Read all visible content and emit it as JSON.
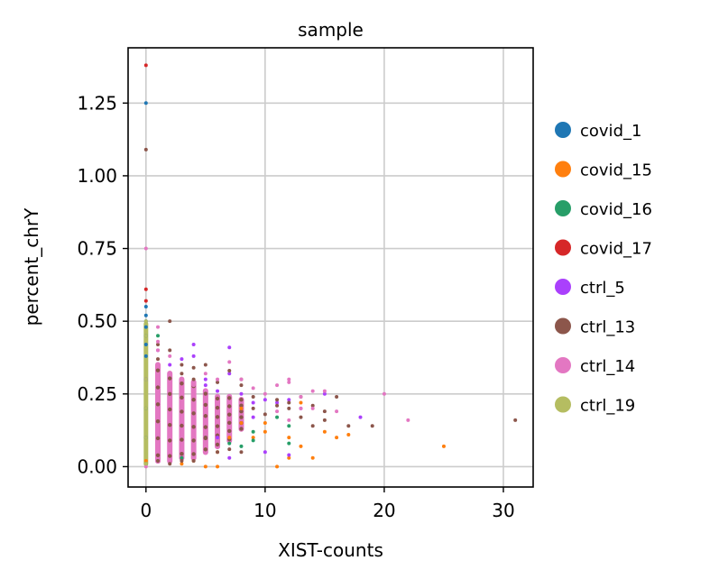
{
  "chart_data": {
    "type": "scatter",
    "title": "sample",
    "xlabel": "XIST-counts",
    "ylabel": "percent_chrY",
    "xlim": [
      -1.5,
      32.5
    ],
    "ylim": [
      -0.07,
      1.44
    ],
    "xticks": [
      0,
      10,
      20,
      30
    ],
    "xtick_labels": [
      "0",
      "10",
      "20",
      "30"
    ],
    "yticks": [
      0.0,
      0.25,
      0.5,
      0.75,
      1.0,
      1.25
    ],
    "ytick_labels": [
      "0.00",
      "0.25",
      "0.50",
      "0.75",
      "1.00",
      "1.25"
    ],
    "grid": true,
    "legend_position": "right-outside",
    "series": [
      {
        "name": "covid_1",
        "color": "#1f77b4",
        "points": [
          [
            0,
            1.25
          ],
          [
            0,
            0.55
          ],
          [
            0,
            0.52
          ],
          [
            0,
            0.5
          ],
          [
            0,
            0.48
          ],
          [
            0,
            0.45
          ],
          [
            0,
            0.42
          ],
          [
            0,
            0.38
          ],
          [
            0,
            0.3
          ],
          [
            0,
            0.2
          ],
          [
            0,
            0.1
          ]
        ]
      },
      {
        "name": "covid_15",
        "color": "#ff7f0e",
        "points": [
          [
            0,
            0.02
          ],
          [
            3,
            0.01
          ],
          [
            5,
            0.0
          ],
          [
            6,
            0.0
          ],
          [
            6,
            0.05
          ],
          [
            7,
            0.1
          ],
          [
            8,
            0.15
          ],
          [
            8,
            0.2
          ],
          [
            9,
            0.1
          ],
          [
            10,
            0.15
          ],
          [
            10,
            0.12
          ],
          [
            11,
            0.0
          ],
          [
            12,
            0.1
          ],
          [
            12,
            0.03
          ],
          [
            13,
            0.22
          ],
          [
            14,
            0.03
          ],
          [
            15,
            0.12
          ],
          [
            16,
            0.1
          ],
          [
            17,
            0.11
          ],
          [
            25,
            0.07
          ],
          [
            13,
            0.07
          ],
          [
            4,
            0.02
          ]
        ]
      },
      {
        "name": "covid_16",
        "color": "#279e68",
        "points": [
          [
            0,
            0.01
          ],
          [
            1,
            0.45
          ],
          [
            3,
            0.03
          ],
          [
            5,
            0.1
          ],
          [
            7,
            0.08
          ],
          [
            8,
            0.07
          ],
          [
            9,
            0.09
          ],
          [
            9,
            0.12
          ],
          [
            12,
            0.08
          ],
          [
            12,
            0.14
          ],
          [
            11,
            0.17
          ]
        ]
      },
      {
        "name": "covid_17",
        "color": "#d62728",
        "points": [
          [
            0,
            1.38
          ],
          [
            0,
            0.61
          ],
          [
            0,
            0.57
          ]
        ]
      },
      {
        "name": "ctrl_5",
        "color": "#aa40fc",
        "points": [
          [
            0,
            0.3
          ],
          [
            1,
            0.4
          ],
          [
            2,
            0.35
          ],
          [
            3,
            0.37
          ],
          [
            4,
            0.42
          ],
          [
            4,
            0.38
          ],
          [
            5,
            0.3
          ],
          [
            5,
            0.28
          ],
          [
            6,
            0.26
          ],
          [
            6,
            0.1
          ],
          [
            7,
            0.41
          ],
          [
            7,
            0.32
          ],
          [
            7,
            0.03
          ],
          [
            8,
            0.25
          ],
          [
            9,
            0.22
          ],
          [
            10,
            0.23
          ],
          [
            10,
            0.05
          ],
          [
            11,
            0.22
          ],
          [
            12,
            0.23
          ],
          [
            12,
            0.04
          ],
          [
            13,
            0.2
          ],
          [
            15,
            0.25
          ],
          [
            18,
            0.17
          ],
          [
            9,
            0.17
          ]
        ]
      },
      {
        "name": "ctrl_13",
        "color": "#8c564b",
        "points": [
          [
            0,
            1.09
          ],
          [
            1,
            0.42
          ],
          [
            1,
            0.37
          ],
          [
            1,
            0.02
          ],
          [
            2,
            0.5
          ],
          [
            2,
            0.4
          ],
          [
            2,
            0.01
          ],
          [
            3,
            0.32
          ],
          [
            3,
            0.35
          ],
          [
            3,
            0.02
          ],
          [
            4,
            0.34
          ],
          [
            4,
            0.3
          ],
          [
            4,
            0.02
          ],
          [
            5,
            0.35
          ],
          [
            5,
            0.1
          ],
          [
            6,
            0.29
          ],
          [
            6,
            0.05
          ],
          [
            7,
            0.33
          ],
          [
            7,
            0.06
          ],
          [
            8,
            0.3
          ],
          [
            8,
            0.28
          ],
          [
            8,
            0.05
          ],
          [
            9,
            0.24
          ],
          [
            9,
            0.2
          ],
          [
            10,
            0.18
          ],
          [
            11,
            0.21
          ],
          [
            11,
            0.23
          ],
          [
            12,
            0.22
          ],
          [
            12,
            0.2
          ],
          [
            13,
            0.24
          ],
          [
            13,
            0.17
          ],
          [
            14,
            0.21
          ],
          [
            14,
            0.14
          ],
          [
            15,
            0.19
          ],
          [
            15,
            0.16
          ],
          [
            16,
            0.24
          ],
          [
            17,
            0.14
          ],
          [
            19,
            0.14
          ],
          [
            31,
            0.16
          ]
        ]
      },
      {
        "name": "ctrl_14",
        "color": "#e377c2",
        "points": [
          [
            0,
            0.75
          ],
          [
            0,
            0.0
          ],
          [
            1,
            0.48
          ],
          [
            1,
            0.43
          ],
          [
            1,
            0.4
          ],
          [
            2,
            0.38
          ],
          [
            3,
            0.3
          ],
          [
            4,
            0.28
          ],
          [
            5,
            0.32
          ],
          [
            6,
            0.3
          ],
          [
            7,
            0.36
          ],
          [
            8,
            0.3
          ],
          [
            9,
            0.27
          ],
          [
            10,
            0.25
          ],
          [
            11,
            0.28
          ],
          [
            12,
            0.3
          ],
          [
            12,
            0.29
          ],
          [
            13,
            0.24
          ],
          [
            14,
            0.26
          ],
          [
            15,
            0.26
          ],
          [
            16,
            0.19
          ],
          [
            20,
            0.25
          ],
          [
            22,
            0.16
          ],
          [
            11,
            0.19
          ],
          [
            12,
            0.16
          ],
          [
            13,
            0.2
          ],
          [
            14,
            0.2
          ]
        ]
      },
      {
        "name": "ctrl_19",
        "color": "#b5bd61",
        "points": [
          [
            0,
            0.5
          ],
          [
            0,
            0.45
          ],
          [
            0,
            0.4
          ],
          [
            0,
            0.35
          ],
          [
            0,
            0.3
          ],
          [
            0,
            0.25
          ],
          [
            0,
            0.2
          ],
          [
            0,
            0.15
          ],
          [
            0,
            0.1
          ],
          [
            0,
            0.05
          ],
          [
            0,
            0.01
          ]
        ]
      }
    ],
    "dense_columns": [
      {
        "x": 0,
        "ymin": 0.0,
        "ymax": 0.5,
        "color": "#b5bd61"
      },
      {
        "x": 1,
        "ymin": 0.01,
        "ymax": 0.36,
        "color": "#e377c2"
      },
      {
        "x": 2,
        "ymin": 0.01,
        "ymax": 0.33,
        "color": "#e377c2"
      },
      {
        "x": 3,
        "ymin": 0.02,
        "ymax": 0.31,
        "color": "#e377c2"
      },
      {
        "x": 4,
        "ymin": 0.02,
        "ymax": 0.3,
        "color": "#e377c2"
      },
      {
        "x": 5,
        "ymin": 0.04,
        "ymax": 0.27,
        "color": "#e377c2"
      },
      {
        "x": 6,
        "ymin": 0.06,
        "ymax": 0.25,
        "color": "#e377c2"
      },
      {
        "x": 7,
        "ymin": 0.08,
        "ymax": 0.25,
        "color": "#e377c2"
      },
      {
        "x": 8,
        "ymin": 0.12,
        "ymax": 0.24,
        "color": "#e377c2"
      }
    ]
  }
}
